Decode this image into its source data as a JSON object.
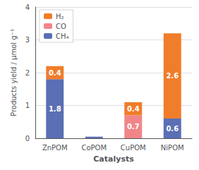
{
  "chart_data": {
    "type": "bar",
    "stacked": true,
    "categories": [
      "ZnPOM",
      "CoPOM",
      "CuPOM",
      "NiPOM"
    ],
    "series": [
      {
        "name": "CH₄",
        "color": "#5b6fb5",
        "values": [
          1.8,
          0.05,
          0.0,
          0.6
        ],
        "value_labels": [
          "1.8",
          null,
          null,
          "0.6"
        ]
      },
      {
        "name": "CO",
        "color": "#f0868a",
        "values": [
          0.0,
          0.0,
          0.7,
          0.0
        ],
        "value_labels": [
          null,
          null,
          "0.7",
          null
        ]
      },
      {
        "name": "H₂",
        "color": "#f07d2a",
        "values": [
          0.4,
          0.0,
          0.4,
          2.6
        ],
        "value_labels": [
          "0.4",
          null,
          "0.4",
          "2.6"
        ]
      }
    ],
    "xlabel": "Catalysts",
    "ylabel": "Products yield / μmol g⁻¹",
    "ylim": [
      0,
      4
    ],
    "yticks": [
      0,
      1,
      2,
      3,
      4
    ],
    "grid": true,
    "legend": "upper left",
    "data_labels": true
  }
}
